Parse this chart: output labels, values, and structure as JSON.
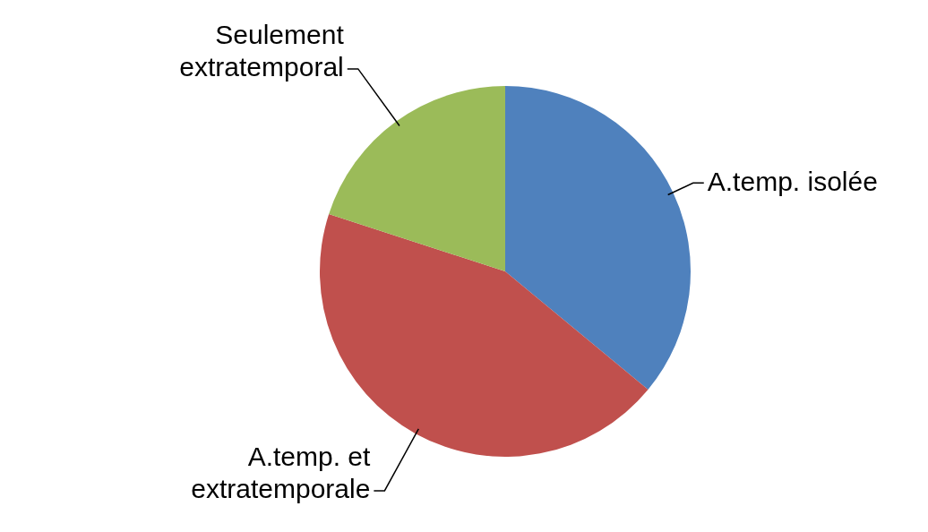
{
  "chart_data": {
    "type": "pie",
    "categories": [
      "A.temp. isolée",
      "A.temp. et extratemporale",
      "Seulement extratemporal"
    ],
    "values": [
      36,
      44,
      20
    ],
    "colors": [
      "#4f81bd",
      "#c0504d",
      "#9bbb59"
    ]
  }
}
